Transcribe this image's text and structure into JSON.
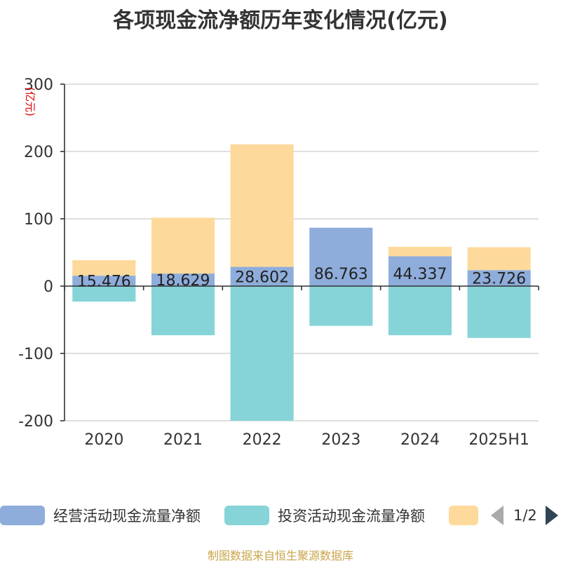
{
  "title": "各项现金流净额历年变化情况(亿元)",
  "footer": "制图数据来自恒生聚源数据库",
  "pager": {
    "text": "1/2"
  },
  "colors": {
    "grid": "#cccccc",
    "axis": "#333333",
    "tick_text": "#333333",
    "unit_text": "#dd0000",
    "label_text": "#222222"
  },
  "chart_data": {
    "type": "bar",
    "stacked": true,
    "title": "各项现金流净额历年变化情况(亿元)",
    "ylabel": "(亿元)",
    "xlabel": "",
    "ylim": [
      -200,
      300
    ],
    "yticks": [
      -200,
      -100,
      0,
      100,
      200,
      300
    ],
    "grid": true,
    "legend_position": "bottom",
    "categories": [
      "2020",
      "2021",
      "2022",
      "2023",
      "2024",
      "2025H1"
    ],
    "series": [
      {
        "name": "经营活动现金流量净额",
        "color": "#8eaddb",
        "values": [
          15.476,
          18.629,
          28.602,
          86.763,
          44.337,
          23.726
        ],
        "labels": [
          "15.476",
          "18.629",
          "28.602",
          "86.763",
          "44.337",
          "23.726"
        ]
      },
      {
        "name": "投资活动现金流量净额",
        "color": "#86d4d8",
        "values": [
          -23,
          -73,
          -200,
          -59,
          -73,
          -77
        ]
      },
      {
        "name": "",
        "color": "#fdd99b",
        "values": [
          23,
          83,
          182,
          0,
          14,
          34
        ]
      }
    ]
  }
}
